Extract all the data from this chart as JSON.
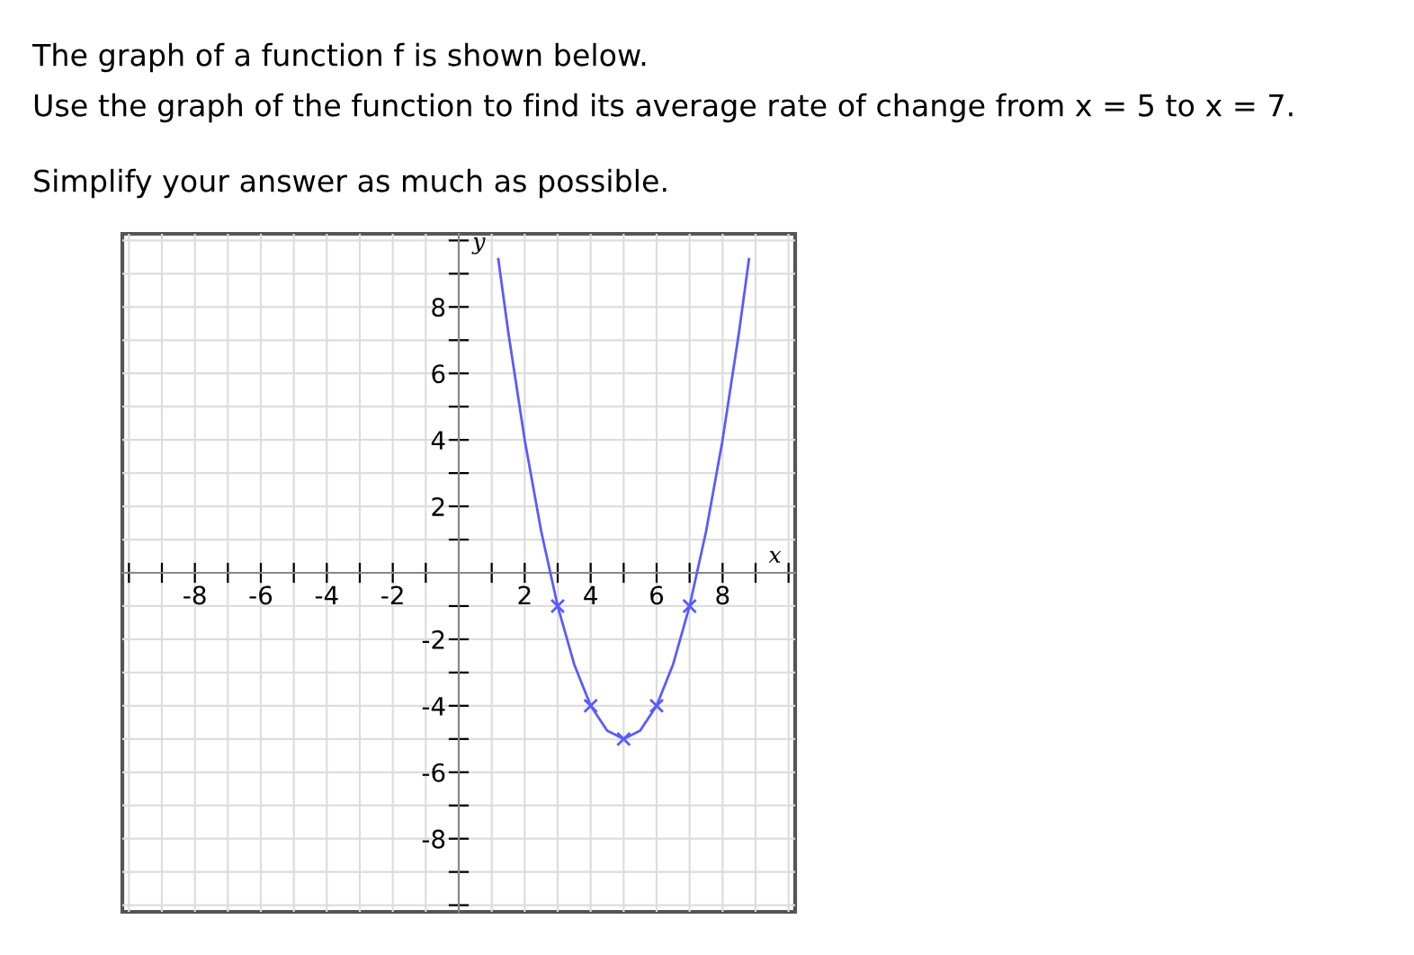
{
  "chart_data": {
    "type": "line",
    "title": "The graph of a function f is shown below.",
    "annotations": [
      "Use the graph of the function to find its average rate of change from x = 5 to x = 7.",
      "Simplify your answer as much as possible."
    ],
    "xlabel": "x",
    "ylabel": "y",
    "x": [
      1.2,
      1.5,
      2,
      2.5,
      3,
      3.5,
      4,
      4.5,
      5,
      5.5,
      6,
      6.5,
      7,
      7.5,
      8,
      8.5,
      8.8
    ],
    "series": [
      {
        "color": "#5a5aff",
        "marker": "none",
        "values": [
          9.44,
          7.25,
          4,
          1.25,
          -1,
          -2.75,
          -4,
          -4.75,
          -5,
          -4.75,
          -4,
          -2.75,
          -1,
          1.25,
          4,
          7.25,
          9.44
        ]
      },
      {
        "type": "scatter",
        "color": "#5a5aff",
        "marker": "cross",
        "x": [
          3,
          4,
          5,
          6,
          7
        ],
        "values": [
          -1,
          -4,
          -5,
          -4,
          -1
        ]
      }
    ],
    "xlim": [
      -10.2,
      10.2
    ],
    "ylim": [
      -10.2,
      10.2
    ],
    "xticks": [
      {
        "value": -10,
        "label": null
      },
      {
        "value": -9,
        "label": null
      },
      -8,
      {
        "value": -7,
        "label": null
      },
      -6,
      {
        "value": -5,
        "label": null
      },
      -4,
      {
        "value": -3,
        "label": null
      },
      -2,
      {
        "value": -1,
        "label": null
      },
      {
        "value": 1,
        "label": null
      },
      2,
      {
        "value": 3,
        "label": null
      },
      4,
      {
        "value": 5,
        "label": null
      },
      6,
      {
        "value": 7,
        "label": null
      },
      8,
      {
        "value": 9,
        "label": null
      },
      {
        "value": 10,
        "label": null
      }
    ],
    "yticks": [
      {
        "value": -10,
        "label": null
      },
      {
        "value": -9,
        "label": null
      },
      -8,
      {
        "value": -7,
        "label": null
      },
      -6,
      {
        "value": -5,
        "label": null
      },
      -4,
      {
        "value": -3,
        "label": null
      },
      -2,
      {
        "value": -1,
        "label": null
      },
      {
        "value": 1,
        "label": null
      },
      2,
      {
        "value": 3,
        "label": null
      },
      4,
      {
        "value": 5,
        "label": null
      },
      6,
      {
        "value": 7,
        "label": null
      },
      8,
      {
        "value": 9,
        "label": null
      },
      {
        "value": 10,
        "label": null
      }
    ],
    "grid": true,
    "legend": false
  }
}
